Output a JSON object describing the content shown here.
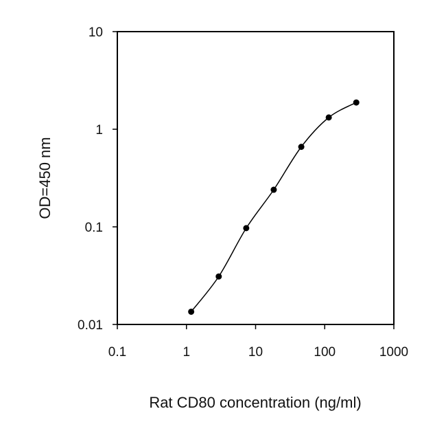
{
  "chart_data": {
    "type": "line",
    "title": "",
    "xlabel": "Rat CD80 concentration (ng/ml)",
    "ylabel": "OD=450 nm",
    "xscale": "log",
    "yscale": "log",
    "xlim": [
      0.1,
      1000
    ],
    "ylim": [
      0.01,
      10
    ],
    "x_ticks": [
      "0.1",
      "1",
      "10",
      "100",
      "1000"
    ],
    "y_ticks": [
      "0.01",
      "0.1",
      "1",
      "10"
    ],
    "grid": false,
    "legend": "none",
    "series": [
      {
        "x": [
          1.17,
          2.93,
          7.32,
          18.3,
          45.8,
          114.4,
          286
        ],
        "y": [
          0.0135,
          0.031,
          0.097,
          0.24,
          0.66,
          1.32,
          1.88
        ]
      }
    ]
  }
}
